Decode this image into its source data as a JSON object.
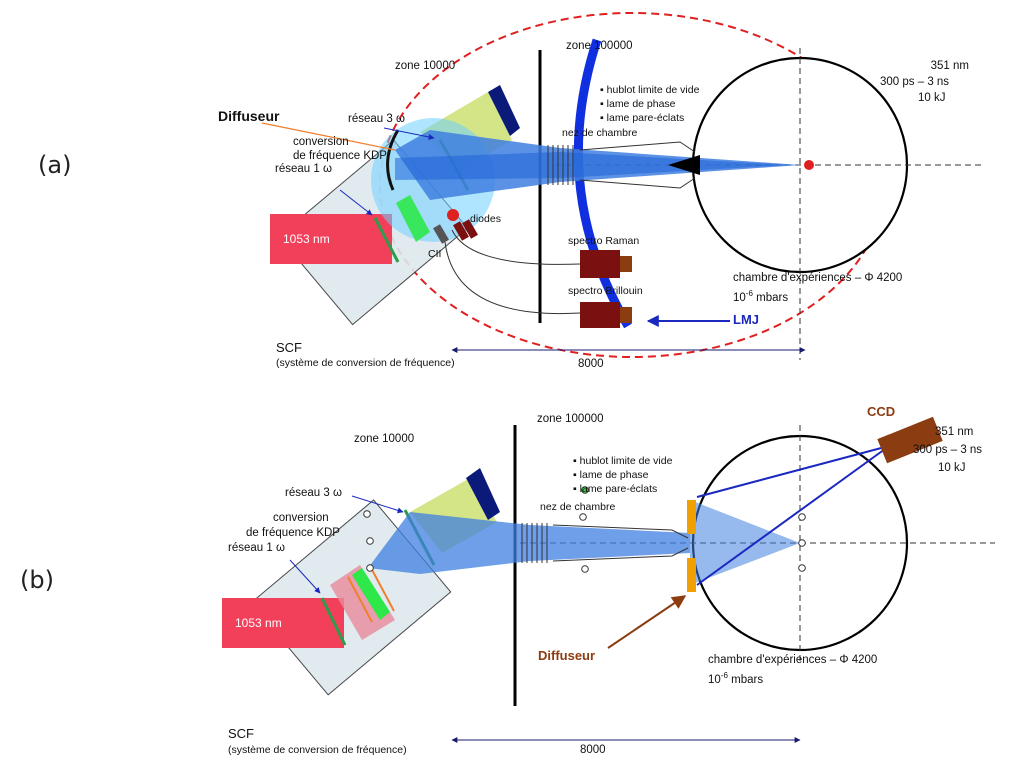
{
  "panels": {
    "a": {
      "tag": "(a)",
      "zone_low": "zone 10000",
      "zone_high": "zone 100000",
      "diffuser": "Diffuseur",
      "grating3": "réseau 3 ω",
      "conversion_l1": "conversion",
      "conversion_l2": "de fréquence KDP",
      "grating1": "réseau 1 ω",
      "laser": "1053 nm",
      "diodes": "diodes",
      "cii": "CII",
      "raman": "spectro Raman",
      "brillouin": "spectro Brillouin",
      "bullets": [
        "hublot limite de vide",
        "lame de phase",
        "lame pare-éclats"
      ],
      "nose": "nez de chambre",
      "wavelength": "351 nm",
      "pulse": "300 ps – 3 ns",
      "energy": "10 kJ",
      "chamber": "chambre d'expériences – Φ 4200",
      "pressure_base": "10",
      "pressure_exp": "-6",
      "pressure_unit": "mbars",
      "lmj": "LMJ",
      "scf": "SCF",
      "scf_full": "(système de conversion de fréquence)",
      "dim": "8000"
    },
    "b": {
      "tag": "(b)",
      "zone_low": "zone 10000",
      "zone_high": "zone 100000",
      "grating3": "réseau 3 ω",
      "conversion_l1": "conversion",
      "conversion_l2": "de fréquence KDP",
      "grating1": "réseau 1 ω",
      "laser": "1053 nm",
      "bullets": [
        "hublot limite de vide",
        "lame de phase",
        "lame pare-éclats"
      ],
      "nose": "nez de chambre",
      "ccd": "CCD",
      "wavelength": "351 nm",
      "pulse": "300 ps – 3 ns",
      "energy": "10 kJ",
      "diffuser": "Diffuseur",
      "chamber": "chambre d'expériences – Φ 4200",
      "pressure_base": "10",
      "pressure_exp": "-6",
      "pressure_unit": "mbars",
      "scf": "SCF",
      "scf_full": "(système de conversion de fréquence)",
      "dim": "8000"
    }
  },
  "colors": {
    "laser_red": "#f2405a",
    "beam_blue": "#3f7fe0",
    "green_crystal": "#2ee84a",
    "diffuser_orange": "#f0a000",
    "ccd_brown": "#8b3c10",
    "dashed_red": "#e02020",
    "dark_red_box": "#7a1010",
    "dark_blue": "#0b1a78",
    "lime_filter": "#cfe07a",
    "arrow_blue": "#1a28c0"
  }
}
